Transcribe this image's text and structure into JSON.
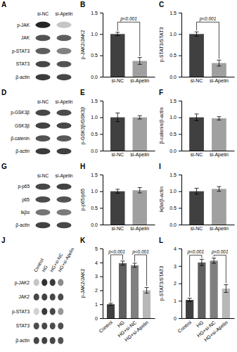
{
  "chart_data": [
    {
      "type": "blot",
      "title": "A",
      "rows": [
        "p-JAK",
        "JAK",
        "p-STAT3",
        "STAT3",
        "β-actin"
      ],
      "categories": [
        "si-NC",
        "si-Apelin"
      ],
      "cells": [
        [
          0.95,
          0.25
        ],
        [
          0.75,
          0.7
        ],
        [
          0.7,
          0.55
        ],
        [
          0.8,
          0.75
        ],
        [
          0.85,
          0.8
        ]
      ]
    },
    {
      "type": "bar",
      "title": "B",
      "ylabel": "p-JAK2/JAK2",
      "categories": [
        "si-NC",
        "si-Apelin"
      ],
      "values": [
        1.0,
        0.37
      ],
      "errors": [
        0.04,
        0.08
      ],
      "colors": [
        "#404040",
        "#a0a0a0"
      ],
      "ylim": [
        0,
        1.5
      ],
      "yticks": [
        {
          "value": 0,
          "label": "0.0"
        },
        0.5,
        {
          "value": 1.0,
          "label": "1.0"
        },
        1.5
      ],
      "annotations": [
        {
          "text": "p<0.001",
          "between": [
            "si-NC",
            "si-Apelin"
          ],
          "y": 1.28
        }
      ]
    },
    {
      "type": "bar",
      "title": "C",
      "ylabel": "p-STAT3/STAT3",
      "categories": [
        "si-NC",
        "si-Apelin"
      ],
      "values": [
        1.0,
        0.32
      ],
      "errors": [
        0.05,
        0.07
      ],
      "colors": [
        "#404040",
        "#a0a0a0"
      ],
      "ylim": [
        0,
        1.5
      ],
      "yticks": [
        {
          "value": 0,
          "label": "0.0"
        },
        0.5,
        {
          "value": 1.0,
          "label": "1.0"
        },
        1.5
      ],
      "annotations": [
        {
          "text": "p<0.001",
          "between": [
            "si-NC",
            "si-Apelin"
          ],
          "y": 1.28
        }
      ]
    },
    {
      "type": "blot",
      "title": "D",
      "rows": [
        "p-GSK3β",
        "GSK3β",
        "β-catenin",
        "β-actin"
      ],
      "categories": [
        "si-NC",
        "si-Apelin"
      ],
      "cells": [
        [
          0.8,
          0.78
        ],
        [
          0.82,
          0.8
        ],
        [
          0.75,
          0.72
        ],
        [
          0.85,
          0.83
        ]
      ]
    },
    {
      "type": "bar",
      "title": "E",
      "ylabel": "p-GSK3β/GSK3β",
      "categories": [
        "si-NC",
        "si-Apelin"
      ],
      "values": [
        1.0,
        1.0
      ],
      "errors": [
        0.13,
        0.05
      ],
      "colors": [
        "#404040",
        "#a0a0a0"
      ],
      "ylim": [
        0,
        1.5
      ],
      "yticks": [
        {
          "value": 0,
          "label": "0.0"
        },
        0.5,
        {
          "value": 1.0,
          "label": "1.0"
        },
        1.5
      ]
    },
    {
      "type": "bar",
      "title": "F",
      "ylabel": "β-catenin/β-actin",
      "categories": [
        "si-NC",
        "si-Apelin"
      ],
      "values": [
        1.0,
        0.97
      ],
      "errors": [
        0.1,
        0.05
      ],
      "colors": [
        "#404040",
        "#a0a0a0"
      ],
      "ylim": [
        0,
        1.5
      ],
      "yticks": [
        {
          "value": 0,
          "label": "0.0"
        },
        0.5,
        {
          "value": 1.0,
          "label": "1.0"
        },
        1.5
      ]
    },
    {
      "type": "blot",
      "title": "G",
      "rows": [
        "p-p65",
        "p65",
        "Ikβα",
        "β-actin"
      ],
      "categories": [
        "si-NC",
        "si-Apelin"
      ],
      "cells": [
        [
          0.8,
          0.82
        ],
        [
          0.78,
          0.75
        ],
        [
          0.6,
          0.58
        ],
        [
          0.82,
          0.8
        ]
      ]
    },
    {
      "type": "bar",
      "title": "H",
      "ylabel": "p-p65/p65",
      "categories": [
        "si-NC",
        "si-Apelin"
      ],
      "values": [
        1.0,
        1.03
      ],
      "errors": [
        0.06,
        0.08
      ],
      "colors": [
        "#404040",
        "#a0a0a0"
      ],
      "ylim": [
        0,
        1.5
      ],
      "yticks": [
        {
          "value": 0,
          "label": "0.0"
        },
        0.5,
        {
          "value": 1.0,
          "label": "1.0"
        },
        1.5
      ]
    },
    {
      "type": "bar",
      "title": "I",
      "ylabel": "Ikβα/β-actin",
      "categories": [
        "si-NC",
        "si-Apelin"
      ],
      "values": [
        1.0,
        1.07
      ],
      "errors": [
        0.09,
        0.07
      ],
      "colors": [
        "#404040",
        "#a0a0a0"
      ],
      "ylim": [
        0,
        1.5
      ],
      "yticks": [
        {
          "value": 0,
          "label": "0.0"
        },
        0.5,
        {
          "value": 1.0,
          "label": "1.0"
        },
        1.5
      ]
    },
    {
      "type": "blot",
      "title": "J",
      "rows": [
        "p-JAK2",
        "JAK2",
        "p-STAT3",
        "STAT3",
        "β-actin"
      ],
      "categories": [
        "Control",
        "HG",
        "HG+si-NC",
        "HG+si-Apelin"
      ],
      "cells": [
        [
          0.25,
          0.9,
          0.85,
          0.5
        ],
        [
          0.8,
          0.82,
          0.8,
          0.78
        ],
        [
          0.2,
          0.85,
          0.8,
          0.45
        ],
        [
          0.78,
          0.8,
          0.78,
          0.76
        ],
        [
          0.8,
          0.82,
          0.8,
          0.75
        ]
      ]
    },
    {
      "type": "bar",
      "title": "K",
      "ylabel": "p-JAK2/JAK2",
      "categories": [
        "Control",
        "HG",
        "HG+si-NC",
        "HG+si-Apelin"
      ],
      "values": [
        1.0,
        3.95,
        3.8,
        2.0
      ],
      "errors": [
        0.08,
        0.15,
        0.15,
        0.2
      ],
      "colors": [
        "#404040",
        "#606060",
        "#808080",
        "#b8b8b8"
      ],
      "ylim": [
        0,
        5
      ],
      "yticks": [
        0,
        1,
        2,
        3,
        4,
        5
      ],
      "annotations": [
        {
          "text": "p<0.001",
          "between": [
            "Control",
            "HG"
          ],
          "y": 4.55
        },
        {
          "text": "p<0.001",
          "between": [
            "HG+si-NC",
            "HG+si-Apelin"
          ],
          "y": 4.55
        }
      ]
    },
    {
      "type": "bar",
      "title": "L",
      "ylabel": "p-STAT3/STAT3",
      "categories": [
        "Control",
        "HG",
        "HG+si-NC",
        "HG+si-Apelin"
      ],
      "values": [
        1.05,
        3.2,
        3.3,
        1.7
      ],
      "errors": [
        0.1,
        0.18,
        0.15,
        0.22
      ],
      "colors": [
        "#404040",
        "#606060",
        "#808080",
        "#b8b8b8"
      ],
      "ylim": [
        0,
        4
      ],
      "yticks": [
        0,
        1,
        2,
        3,
        4
      ],
      "annotations": [
        {
          "text": "p<0.001",
          "between": [
            "Control",
            "HG"
          ],
          "y": 3.62
        },
        {
          "text": "p<0.001",
          "between": [
            "HG+si-NC",
            "HG+si-Apelin"
          ],
          "y": 3.62
        }
      ]
    }
  ]
}
